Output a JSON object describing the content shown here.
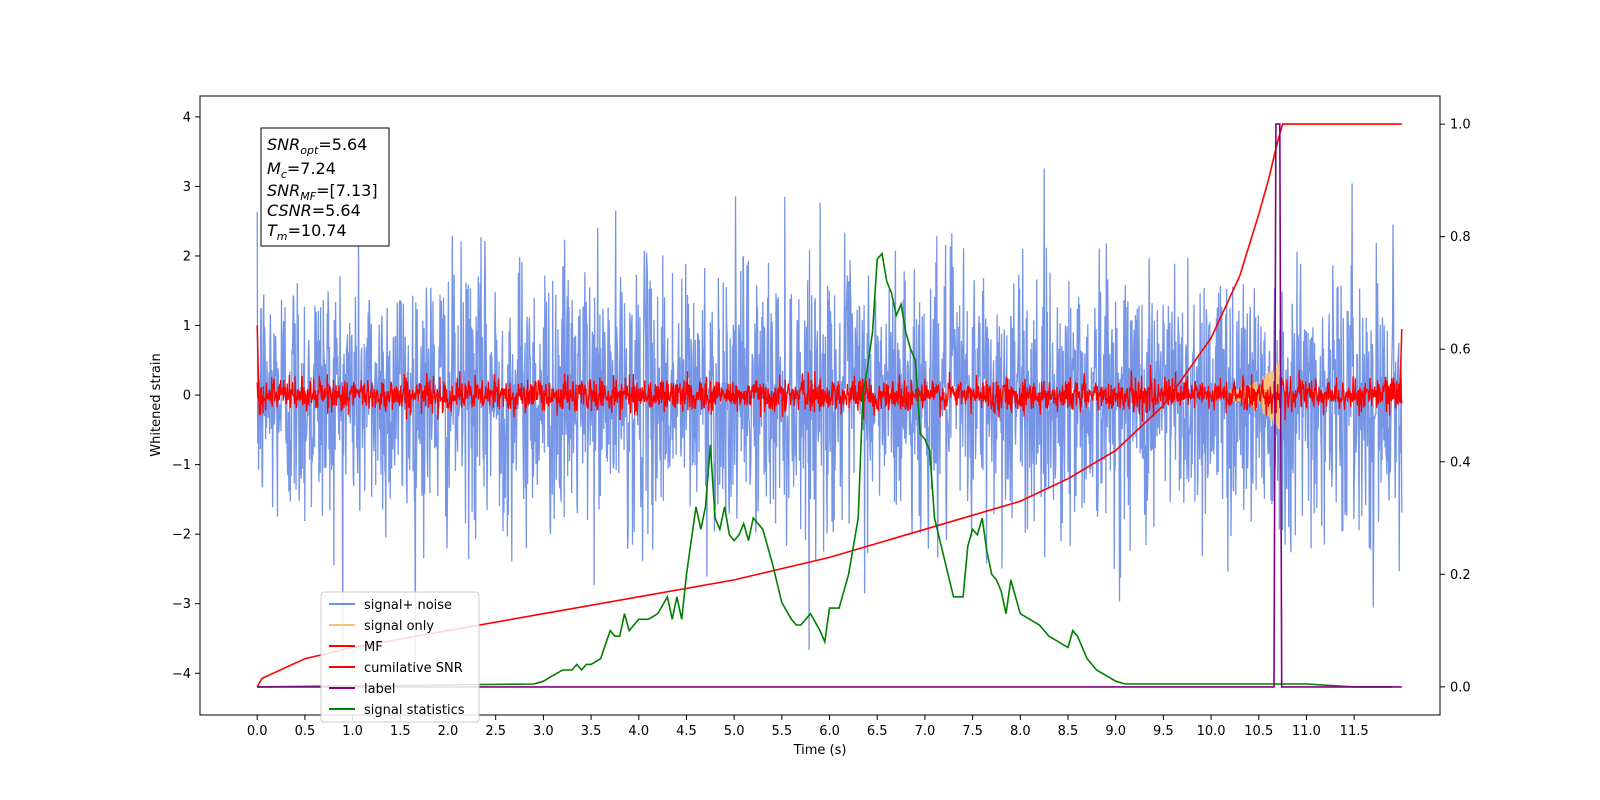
{
  "chart_data": {
    "type": "line",
    "xlabel": "Time (s)",
    "ylabel": "Whitened strain",
    "xlim": [
      -0.6,
      12.4
    ],
    "ylim": [
      -4.6,
      4.3
    ],
    "y2lim": [
      -0.05,
      1.05
    ],
    "x_ticks": [
      "0.0",
      "0.5",
      "1.0",
      "1.5",
      "2.0",
      "2.5",
      "3.0",
      "3.5",
      "4.0",
      "4.5",
      "5.0",
      "5.5",
      "6.0",
      "6.5",
      "7.0",
      "7.5",
      "8.0",
      "8.5",
      "9.0",
      "9.5",
      "10.0",
      "10.5",
      "11.0",
      "11.5"
    ],
    "y_ticks": [
      "4",
      "3",
      "2",
      "1",
      "0",
      "−1",
      "−2",
      "−3",
      "−4"
    ],
    "y2_ticks": [
      "1.0",
      "0.8",
      "0.6",
      "0.4",
      "0.2",
      "0.0"
    ],
    "legend_position": "lower-left",
    "stats_box": {
      "snr_opt": "5.64",
      "mc": "7.24",
      "snr_mf": "[7.13]",
      "csnr": "5.64",
      "tm": "10.74"
    },
    "series": [
      {
        "name": "signal+ noise",
        "color": "#6f8fe6",
        "axis": "left",
        "kind": "noise",
        "x_range": [
          0,
          12.0
        ],
        "std": 0.95
      },
      {
        "name": "signal only",
        "color": "#f5c27a",
        "axis": "left",
        "kind": "chirp",
        "x_range": [
          10.2,
          10.74
        ],
        "amplitude_max": 0.55
      },
      {
        "name": "MF",
        "color": "#ff0000",
        "axis": "left",
        "kind": "noise",
        "x_range": [
          0,
          12.0
        ],
        "std": 0.12
      },
      {
        "name": "cumilative SNR",
        "color": "#ff0000",
        "axis": "right",
        "x": [
          0.0,
          0.05,
          0.5,
          1.0,
          2.0,
          3.0,
          4.0,
          5.0,
          6.0,
          7.0,
          8.0,
          8.5,
          9.0,
          9.5,
          10.0,
          10.3,
          10.5,
          10.6,
          10.7,
          10.75,
          11.0,
          11.5,
          12.0
        ],
        "values": [
          0.0,
          0.015,
          0.05,
          0.07,
          0.1,
          0.13,
          0.16,
          0.19,
          0.23,
          0.28,
          0.33,
          0.37,
          0.42,
          0.5,
          0.62,
          0.73,
          0.84,
          0.9,
          0.97,
          1.0,
          1.0,
          1.0,
          1.0
        ]
      },
      {
        "name": "label",
        "color": "#800080",
        "axis": "right",
        "x": [
          0.0,
          10.6,
          10.66,
          10.68,
          10.72,
          10.74,
          12.0
        ],
        "values": [
          0.0,
          0.0,
          0.0,
          1.0,
          1.0,
          0.0,
          0.0
        ]
      },
      {
        "name": "signal statistics",
        "color": "#008000",
        "axis": "right",
        "x": [
          0.0,
          2.9,
          3.0,
          3.1,
          3.2,
          3.3,
          3.35,
          3.4,
          3.45,
          3.5,
          3.6,
          3.7,
          3.75,
          3.8,
          3.85,
          3.9,
          4.0,
          4.1,
          4.2,
          4.3,
          4.35,
          4.4,
          4.45,
          4.5,
          4.6,
          4.65,
          4.7,
          4.75,
          4.8,
          4.85,
          4.9,
          4.95,
          5.0,
          5.05,
          5.1,
          5.15,
          5.2,
          5.3,
          5.4,
          5.5,
          5.6,
          5.65,
          5.7,
          5.8,
          5.9,
          5.95,
          6.0,
          6.1,
          6.2,
          6.3,
          6.35,
          6.4,
          6.45,
          6.5,
          6.55,
          6.6,
          6.65,
          6.7,
          6.75,
          6.8,
          6.85,
          6.9,
          6.95,
          7.0,
          7.05,
          7.1,
          7.2,
          7.3,
          7.4,
          7.45,
          7.5,
          7.55,
          7.6,
          7.65,
          7.7,
          7.75,
          7.8,
          7.85,
          7.9,
          8.0,
          8.1,
          8.2,
          8.3,
          8.4,
          8.5,
          8.55,
          8.6,
          8.7,
          8.8,
          8.9,
          9.0,
          9.1,
          9.5,
          10.0,
          10.5,
          11.0,
          11.5,
          11.9
        ],
        "values": [
          0.0,
          0.005,
          0.01,
          0.02,
          0.03,
          0.03,
          0.04,
          0.03,
          0.04,
          0.04,
          0.05,
          0.1,
          0.09,
          0.09,
          0.13,
          0.1,
          0.12,
          0.12,
          0.13,
          0.16,
          0.12,
          0.16,
          0.12,
          0.2,
          0.32,
          0.28,
          0.32,
          0.43,
          0.3,
          0.28,
          0.32,
          0.27,
          0.26,
          0.27,
          0.29,
          0.26,
          0.3,
          0.28,
          0.22,
          0.15,
          0.12,
          0.11,
          0.11,
          0.13,
          0.1,
          0.08,
          0.14,
          0.14,
          0.2,
          0.3,
          0.52,
          0.57,
          0.63,
          0.76,
          0.77,
          0.72,
          0.7,
          0.66,
          0.68,
          0.63,
          0.6,
          0.58,
          0.45,
          0.44,
          0.42,
          0.3,
          0.23,
          0.16,
          0.16,
          0.25,
          0.28,
          0.27,
          0.3,
          0.24,
          0.2,
          0.19,
          0.17,
          0.13,
          0.19,
          0.13,
          0.12,
          0.11,
          0.09,
          0.08,
          0.07,
          0.1,
          0.09,
          0.05,
          0.03,
          0.02,
          0.01,
          0.005,
          0.005,
          0.005,
          0.005,
          0.005,
          0.0,
          0.0
        ]
      }
    ]
  }
}
